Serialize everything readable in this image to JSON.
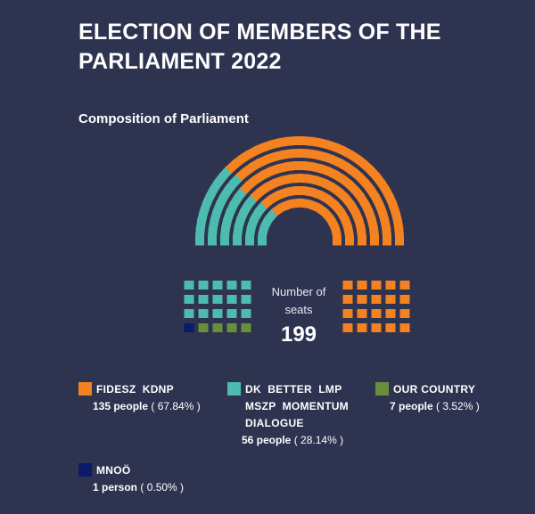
{
  "page": {
    "title": "ELECTION OF MEMBERS OF THE PARLIAMENT 2022",
    "subtitle": "Composition of Parliament",
    "center_label": "Number of seats",
    "center_value": "199"
  },
  "chart_data": {
    "type": "parliament",
    "title": "Composition of Parliament",
    "total_seats": 199,
    "series": [
      {
        "name": "FIDESZ  KDNP",
        "seats": 135,
        "percent": 67.84,
        "count_text": "135 people",
        "percent_text": "( 67.84% )",
        "color": "#f58220"
      },
      {
        "name": "DK  BETTER  LMP  MSZP  MOMENTUM  DIALOGUE",
        "seats": 56,
        "percent": 28.14,
        "count_text": "56 people",
        "percent_text": "( 28.14% )",
        "color": "#4dbcae"
      },
      {
        "name": "OUR COUNTRY",
        "seats": 7,
        "percent": 3.52,
        "count_text": "7 people",
        "percent_text": "( 3.52% )",
        "color": "#6a8f3c"
      },
      {
        "name": "MNOÖ",
        "seats": 1,
        "percent": 0.5,
        "count_text": "1 person",
        "percent_text": "( 0.50% )",
        "color": "#0b1a6b"
      }
    ]
  }
}
